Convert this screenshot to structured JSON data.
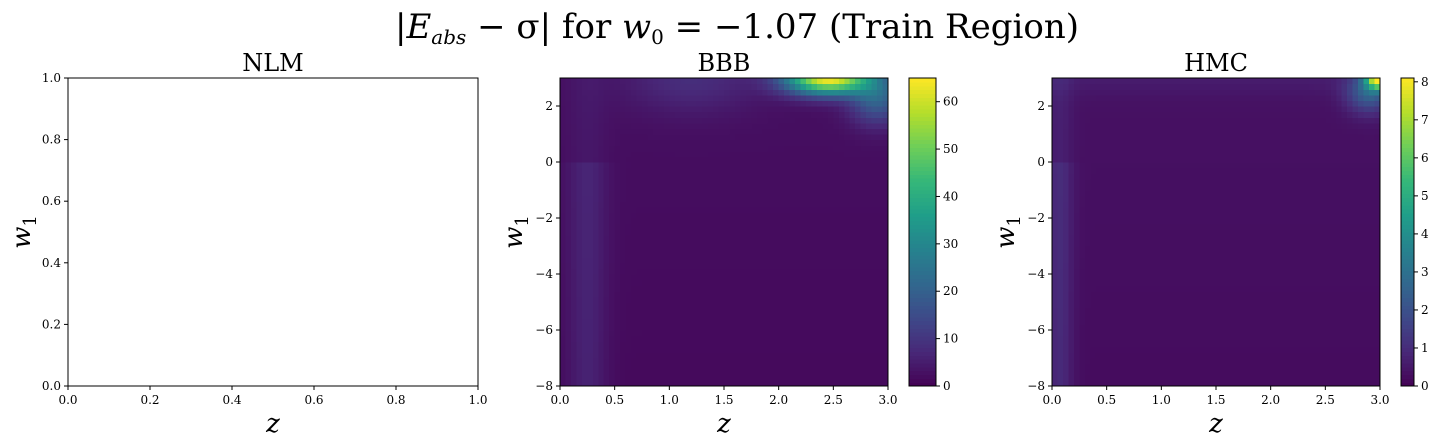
{
  "figure": {
    "suptitle": "|Eₐₑₛ − σ| for w₀ = −1.07 (Train Region)",
    "suptitle_parts": {
      "lhs_open": "|",
      "E": "E",
      "E_sub": "abs",
      "minus_sigma": " − σ|",
      "for": " for ",
      "w": "w",
      "w_sub": "0",
      "rhs": " = −1.07 (Train Region)"
    },
    "colormap": "viridis",
    "colormap_stops": [
      "#440154",
      "#482878",
      "#3e4989",
      "#31688e",
      "#26828e",
      "#1f9e89",
      "#35b779",
      "#6ece58",
      "#b5de2b",
      "#fde725"
    ]
  },
  "chart_data": [
    {
      "type": "heatmap",
      "title": "NLM",
      "xlabel": "z",
      "ylabel": "w",
      "ylabel_sub": "1",
      "xlim": [
        0.0,
        1.0
      ],
      "ylim": [
        0.0,
        1.0
      ],
      "xticks": [
        "0.0",
        "0.2",
        "0.4",
        "0.6",
        "0.8",
        "1.0"
      ],
      "yticks": [
        "0.0",
        "0.2",
        "0.4",
        "0.6",
        "0.8",
        "1.0"
      ],
      "empty": true,
      "colorbar": null
    },
    {
      "type": "heatmap",
      "title": "BBB",
      "xlabel": "z",
      "ylabel": "w",
      "ylabel_sub": "1",
      "xlim": [
        0.0,
        3.0
      ],
      "ylim": [
        -8,
        3
      ],
      "xticks": [
        "0.0",
        "0.5",
        "1.0",
        "1.5",
        "2.0",
        "2.5",
        "3.0"
      ],
      "yticks": [
        "−8",
        "−6",
        "−4",
        "−2",
        "0",
        "2"
      ],
      "empty": false,
      "colorbar": {
        "min": 0,
        "max": 65,
        "ticks": [
          "0",
          "10",
          "20",
          "30",
          "40",
          "50",
          "60"
        ],
        "tick_values": [
          0,
          10,
          20,
          30,
          40,
          50,
          60
        ]
      },
      "value_range": [
        0,
        65
      ],
      "features": [
        {
          "desc": "peak",
          "z": 2.45,
          "w1": 2.8,
          "value": 64
        },
        {
          "desc": "low-z band",
          "z": 0.25,
          "value": 5
        }
      ]
    },
    {
      "type": "heatmap",
      "title": "HMC",
      "xlabel": "z",
      "ylabel": "w",
      "ylabel_sub": "1",
      "xlim": [
        0.0,
        3.0
      ],
      "ylim": [
        -8,
        3
      ],
      "xticks": [
        "0.0",
        "0.5",
        "1.0",
        "1.5",
        "2.0",
        "2.5",
        "3.0"
      ],
      "yticks": [
        "−8",
        "−6",
        "−4",
        "−2",
        "0",
        "2"
      ],
      "empty": false,
      "colorbar": {
        "min": 0,
        "max": 8.1,
        "ticks": [
          "0",
          "1",
          "2",
          "3",
          "4",
          "5",
          "6",
          "7",
          "8"
        ],
        "tick_values": [
          0,
          1,
          2,
          3,
          4,
          5,
          6,
          7,
          8
        ]
      },
      "value_range": [
        0,
        8.1
      ],
      "features": [
        {
          "desc": "peak",
          "z": 2.98,
          "w1": 2.95,
          "value": 8.1
        },
        {
          "desc": "low-z band",
          "z": 0.08,
          "value": 0.8
        }
      ]
    }
  ]
}
